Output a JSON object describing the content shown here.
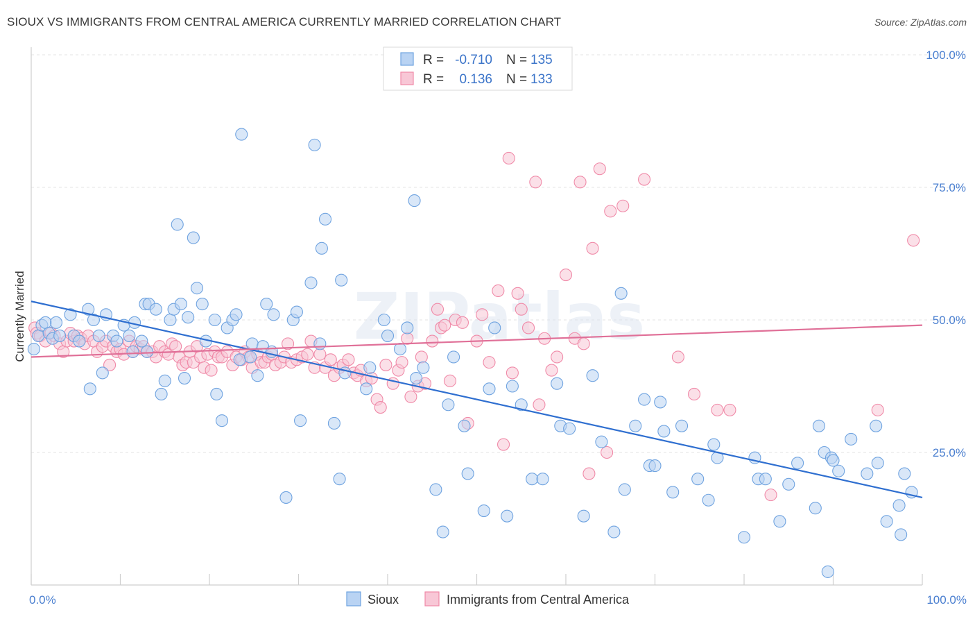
{
  "title": "SIOUX VS IMMIGRANTS FROM CENTRAL AMERICA CURRENTLY MARRIED CORRELATION CHART",
  "source": "Source: ZipAtlas.com",
  "watermark": "ZIPatlas",
  "colors": {
    "sioux": "#6fa3e0",
    "sioux_line": "#2f6fd0",
    "immigrants": "#f08aa8",
    "immigrants_line": "#e07098",
    "tick": "#4a7fd0"
  },
  "chart_data": {
    "type": "scatter",
    "xlabel": "",
    "ylabel": "Currently Married",
    "xlim": [
      0,
      100
    ],
    "ylim": [
      0,
      100
    ],
    "x_tick_labels": {
      "left": "0.0%",
      "right": "100.0%"
    },
    "y_ticks": [
      {
        "value": 25,
        "label": "25.0%"
      },
      {
        "value": 50,
        "label": "50.0%"
      },
      {
        "value": 75,
        "label": "75.0%"
      },
      {
        "value": 100,
        "label": "100.0%"
      }
    ],
    "grid": "horizontal dashed",
    "legend_placement": "top-center",
    "legend": [
      {
        "r_label": "R =",
        "r_value": "-0.710",
        "n_label": "N =",
        "n_value": "135"
      },
      {
        "r_label": "R =",
        "r_value": "0.136",
        "n_label": "N =",
        "n_value": "133"
      }
    ],
    "series": [
      {
        "name": "Sioux",
        "trend": {
          "x": [
            0,
            100
          ],
          "y": [
            53.5,
            16.5
          ]
        },
        "points": [
          [
            0.3,
            44.5
          ],
          [
            0.8,
            47
          ],
          [
            1.2,
            49
          ],
          [
            1.6,
            49.5
          ],
          [
            2,
            47.5
          ],
          [
            2.4,
            46.5
          ],
          [
            2.8,
            49.5
          ],
          [
            3.2,
            47
          ],
          [
            4.4,
            51
          ],
          [
            4.8,
            47
          ],
          [
            5.4,
            46
          ],
          [
            6.4,
            52
          ],
          [
            6.6,
            37
          ],
          [
            7,
            50
          ],
          [
            7.6,
            47
          ],
          [
            8,
            40
          ],
          [
            8.4,
            51
          ],
          [
            9.2,
            47
          ],
          [
            9.6,
            46
          ],
          [
            10.4,
            49
          ],
          [
            11,
            47
          ],
          [
            11.4,
            44
          ],
          [
            11.6,
            49.5
          ],
          [
            12.4,
            46
          ],
          [
            12.8,
            53
          ],
          [
            13,
            44
          ],
          [
            13.2,
            53
          ],
          [
            14,
            52
          ],
          [
            14.6,
            36
          ],
          [
            15,
            38.5
          ],
          [
            15.6,
            50
          ],
          [
            16,
            52
          ],
          [
            16.4,
            68
          ],
          [
            16.8,
            53
          ],
          [
            17.2,
            39
          ],
          [
            17.6,
            50.5
          ],
          [
            18.2,
            65.5
          ],
          [
            18.6,
            56
          ],
          [
            19.2,
            53
          ],
          [
            19.6,
            46
          ],
          [
            20.6,
            50
          ],
          [
            20.8,
            36
          ],
          [
            21.4,
            31
          ],
          [
            22,
            48.5
          ],
          [
            22.6,
            50
          ],
          [
            23,
            51
          ],
          [
            23.4,
            42.5
          ],
          [
            23.6,
            85
          ],
          [
            24.6,
            43
          ],
          [
            24.8,
            45.5
          ],
          [
            25.4,
            39.5
          ],
          [
            26,
            45
          ],
          [
            26.4,
            53
          ],
          [
            27,
            44
          ],
          [
            27.2,
            51
          ],
          [
            28.6,
            16.5
          ],
          [
            29.4,
            50
          ],
          [
            29.8,
            51.5
          ],
          [
            30.2,
            31
          ],
          [
            31.4,
            57
          ],
          [
            31.8,
            83
          ],
          [
            32.4,
            45.5
          ],
          [
            32.6,
            63.5
          ],
          [
            33,
            69
          ],
          [
            34,
            30.5
          ],
          [
            34.6,
            20
          ],
          [
            34.8,
            57.5
          ],
          [
            35.2,
            40
          ],
          [
            37.6,
            37
          ],
          [
            38,
            41
          ],
          [
            39.6,
            50
          ],
          [
            40,
            47
          ],
          [
            41.4,
            44.5
          ],
          [
            42.2,
            48.5
          ],
          [
            43,
            72.5
          ],
          [
            43.2,
            39
          ],
          [
            44,
            41
          ],
          [
            45.4,
            18
          ],
          [
            46.2,
            10
          ],
          [
            46.8,
            34
          ],
          [
            47.4,
            43
          ],
          [
            48.6,
            30
          ],
          [
            49,
            21
          ],
          [
            50.8,
            14
          ],
          [
            51.4,
            37
          ],
          [
            52,
            48.5
          ],
          [
            53.4,
            13
          ],
          [
            54,
            37.5
          ],
          [
            55,
            34
          ],
          [
            56.2,
            20
          ],
          [
            57.4,
            20
          ],
          [
            59,
            38
          ],
          [
            59.4,
            30
          ],
          [
            60.4,
            29.5
          ],
          [
            62,
            13
          ],
          [
            63,
            39.5
          ],
          [
            64,
            27
          ],
          [
            65.4,
            10
          ],
          [
            66.2,
            55
          ],
          [
            66.6,
            18
          ],
          [
            67.8,
            30
          ],
          [
            68.8,
            35
          ],
          [
            69.4,
            22.5
          ],
          [
            70,
            22.5
          ],
          [
            70.6,
            34.5
          ],
          [
            71,
            29
          ],
          [
            72,
            17.5
          ],
          [
            73,
            30
          ],
          [
            74.8,
            20
          ],
          [
            76,
            16
          ],
          [
            76.6,
            26.5
          ],
          [
            77,
            24
          ],
          [
            80,
            9
          ],
          [
            81.2,
            24
          ],
          [
            81.6,
            20
          ],
          [
            82.4,
            20
          ],
          [
            84,
            12
          ],
          [
            85,
            19
          ],
          [
            86,
            23
          ],
          [
            88,
            14.5
          ],
          [
            88.4,
            30
          ],
          [
            89,
            25
          ],
          [
            89.4,
            2.5
          ],
          [
            89.8,
            24
          ],
          [
            90,
            23.5
          ],
          [
            90.6,
            21.5
          ],
          [
            92,
            27.5
          ],
          [
            93.8,
            21
          ],
          [
            94.8,
            30
          ],
          [
            95,
            23
          ],
          [
            96,
            12
          ],
          [
            97.4,
            15
          ],
          [
            97.6,
            9.5
          ],
          [
            98,
            21
          ],
          [
            98.8,
            17.5
          ]
        ]
      },
      {
        "name": "Immigrants from Central America",
        "trend": {
          "x": [
            0,
            100
          ],
          "y": [
            43,
            49
          ]
        },
        "points": [
          [
            0.4,
            48.5
          ],
          [
            0.6,
            47.5
          ],
          [
            1,
            47
          ],
          [
            1.6,
            46
          ],
          [
            2.2,
            47.5
          ],
          [
            2.6,
            47
          ],
          [
            3.2,
            45.5
          ],
          [
            3.6,
            44
          ],
          [
            4,
            46
          ],
          [
            4.4,
            47.5
          ],
          [
            4.8,
            46
          ],
          [
            5.2,
            47
          ],
          [
            5.6,
            46.5
          ],
          [
            6,
            45.5
          ],
          [
            6.4,
            47
          ],
          [
            7,
            46
          ],
          [
            7.4,
            44
          ],
          [
            8,
            45
          ],
          [
            8.4,
            46
          ],
          [
            8.8,
            41.5
          ],
          [
            9.2,
            45
          ],
          [
            9.6,
            44
          ],
          [
            10,
            44.5
          ],
          [
            10.4,
            43.5
          ],
          [
            11,
            46
          ],
          [
            11.4,
            44
          ],
          [
            11.8,
            45
          ],
          [
            12.2,
            44.5
          ],
          [
            12.6,
            45
          ],
          [
            13,
            44
          ],
          [
            13.6,
            44
          ],
          [
            14,
            43
          ],
          [
            14.4,
            45
          ],
          [
            15,
            44
          ],
          [
            15.4,
            43.5
          ],
          [
            15.8,
            45.5
          ],
          [
            16.2,
            45
          ],
          [
            16.6,
            43
          ],
          [
            17,
            41.5
          ],
          [
            17.4,
            42
          ],
          [
            17.8,
            44
          ],
          [
            18.2,
            42
          ],
          [
            18.6,
            45
          ],
          [
            19,
            43
          ],
          [
            19.4,
            41
          ],
          [
            19.8,
            43.5
          ],
          [
            20.2,
            40.5
          ],
          [
            20.6,
            44
          ],
          [
            21,
            43
          ],
          [
            21.4,
            43
          ],
          [
            22,
            44
          ],
          [
            22.6,
            41.5
          ],
          [
            23,
            43
          ],
          [
            23.6,
            42.5
          ],
          [
            24,
            44
          ],
          [
            24.4,
            43
          ],
          [
            24.8,
            41
          ],
          [
            25.4,
            43.5
          ],
          [
            25.8,
            42
          ],
          [
            26.2,
            42
          ],
          [
            26.6,
            43
          ],
          [
            27,
            43.5
          ],
          [
            27.4,
            41.5
          ],
          [
            28,
            42
          ],
          [
            28.4,
            43
          ],
          [
            28.8,
            45.5
          ],
          [
            29.2,
            42
          ],
          [
            29.8,
            42.5
          ],
          [
            30.4,
            43
          ],
          [
            31,
            43.5
          ],
          [
            31.4,
            46
          ],
          [
            31.8,
            41
          ],
          [
            32.4,
            43.5
          ],
          [
            33,
            41
          ],
          [
            33.6,
            42.5
          ],
          [
            34,
            39.5
          ],
          [
            34.6,
            41
          ],
          [
            35,
            41.5
          ],
          [
            35.6,
            42.5
          ],
          [
            36.2,
            40
          ],
          [
            36.6,
            39.5
          ],
          [
            37,
            40.5
          ],
          [
            37.6,
            38.5
          ],
          [
            38.2,
            39
          ],
          [
            38.8,
            35
          ],
          [
            39.2,
            33.5
          ],
          [
            39.8,
            41.5
          ],
          [
            40.6,
            38
          ],
          [
            41.2,
            40.5
          ],
          [
            41.6,
            42
          ],
          [
            42.2,
            46.5
          ],
          [
            42.6,
            35.5
          ],
          [
            43.4,
            37.5
          ],
          [
            43.8,
            43
          ],
          [
            44.2,
            38
          ],
          [
            45,
            46
          ],
          [
            45.6,
            52
          ],
          [
            46,
            48.5
          ],
          [
            46.4,
            49
          ],
          [
            47,
            38.5
          ],
          [
            47.6,
            50
          ],
          [
            48.4,
            49.5
          ],
          [
            49,
            30.5
          ],
          [
            50,
            46
          ],
          [
            50.6,
            51
          ],
          [
            51.4,
            42
          ],
          [
            52.4,
            55.5
          ],
          [
            53,
            26.5
          ],
          [
            53.6,
            80.5
          ],
          [
            54,
            40
          ],
          [
            54.6,
            55
          ],
          [
            55,
            52
          ],
          [
            55.8,
            48.5
          ],
          [
            56.6,
            76
          ],
          [
            57,
            34
          ],
          [
            57.6,
            46.5
          ],
          [
            58.4,
            40.5
          ],
          [
            59,
            43
          ],
          [
            60,
            58.5
          ],
          [
            61,
            46.5
          ],
          [
            61.6,
            76
          ],
          [
            62,
            45.5
          ],
          [
            62.6,
            21
          ],
          [
            63,
            63.5
          ],
          [
            63.8,
            78.5
          ],
          [
            64.6,
            25
          ],
          [
            65,
            70.5
          ],
          [
            66.4,
            71.5
          ],
          [
            68.8,
            76.5
          ],
          [
            72.6,
            43
          ],
          [
            74.4,
            36
          ],
          [
            77,
            33
          ],
          [
            78.4,
            33
          ],
          [
            83,
            17
          ],
          [
            95,
            33
          ],
          [
            99,
            65
          ]
        ]
      }
    ]
  }
}
